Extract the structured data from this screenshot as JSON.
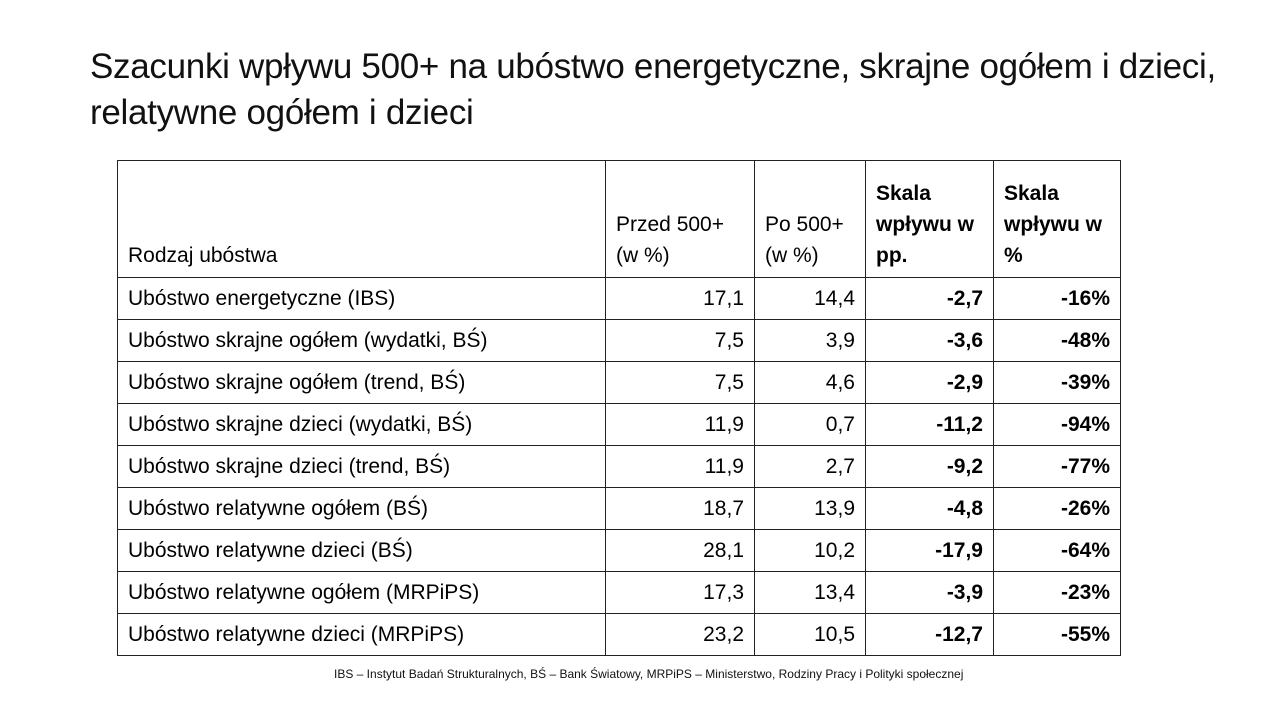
{
  "title": "Szacunki wpływu 500+ na ubóstwo energetyczne, skrajne ogółem i dzieci, relatywne ogółem i dzieci",
  "table": {
    "headers": [
      "Rodzaj ubóstwa",
      "Przed 500+ (w %)",
      "Po 500+ (w %)",
      "Skala wpływu w pp.",
      "Skala wpływu w %"
    ],
    "rows": [
      [
        "Ubóstwo energetyczne (IBS)",
        "17,1",
        "14,4",
        "-2,7",
        "-16%"
      ],
      [
        "Ubóstwo skrajne ogółem (wydatki, BŚ)",
        "7,5",
        "3,9",
        "-3,6",
        "-48%"
      ],
      [
        "Ubóstwo skrajne ogółem (trend,  BŚ)",
        "7,5",
        "4,6",
        "-2,9",
        "-39%"
      ],
      [
        "Ubóstwo skrajne dzieci (wydatki, BŚ)",
        "11,9",
        "0,7",
        "-11,2",
        "-94%"
      ],
      [
        "Ubóstwo skrajne dzieci (trend, BŚ)",
        "11,9",
        "2,7",
        "-9,2",
        "-77%"
      ],
      [
        "Ubóstwo relatywne ogółem (BŚ)",
        "18,7",
        "13,9",
        "-4,8",
        "-26%"
      ],
      [
        "Ubóstwo relatywne dzieci (BŚ)",
        "28,1",
        "10,2",
        "-17,9",
        "-64%"
      ],
      [
        "Ubóstwo relatywne ogółem (MRPiPS)",
        "17,3",
        "13,4",
        "-3,9",
        "-23%"
      ],
      [
        "Ubóstwo relatywne dzieci (MRPiPS)",
        "23,2",
        "10,5",
        "-12,7",
        "-55%"
      ]
    ]
  },
  "footnote": "IBS – Instytut Badań Strukturalnych, BŚ – Bank Światowy, MRPiPS – Ministerstwo, Rodziny Pracy i Polityki społecznej"
}
